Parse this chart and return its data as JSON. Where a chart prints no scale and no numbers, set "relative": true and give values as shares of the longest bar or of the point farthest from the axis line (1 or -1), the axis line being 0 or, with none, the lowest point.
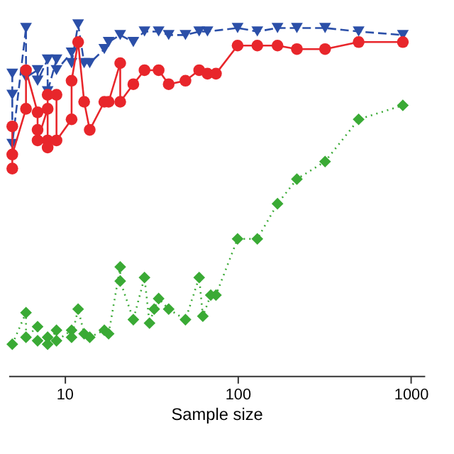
{
  "chart_data": {
    "type": "line",
    "xlabel": "Sample size",
    "relative": true,
    "log": "x",
    "grid": false,
    "xlim": [
      4.75,
      1200
    ],
    "xticks": [
      10,
      100,
      1000
    ],
    "series": [
      {
        "color": "#2b4fa8",
        "marker": "triangle",
        "line_style": "dashed",
        "x": [
          5,
          5,
          5,
          6,
          6,
          7,
          7,
          8,
          8,
          9,
          9,
          11,
          11,
          12,
          13,
          14,
          17,
          18,
          21,
          25,
          29,
          35,
          40,
          50,
          60,
          67,
          100,
          130,
          170,
          220,
          320,
          500,
          900
        ],
        "values": [
          0.86,
          0.8,
          0.66,
          0.99,
          0.85,
          0.87,
          0.84,
          0.9,
          0.81,
          0.9,
          0.87,
          0.92,
          0.89,
          1.0,
          0.89,
          0.89,
          0.93,
          0.95,
          0.97,
          0.95,
          0.98,
          0.98,
          0.97,
          0.97,
          0.98,
          0.98,
          0.99,
          0.98,
          0.99,
          0.99,
          0.99,
          0.98,
          0.97
        ]
      },
      {
        "color": "#e8262b",
        "marker": "circle",
        "line_style": "solid",
        "x": [
          5,
          5,
          5,
          6,
          6,
          7,
          7,
          7,
          8,
          8,
          8,
          8,
          9,
          9,
          11,
          11,
          12,
          13,
          14,
          17,
          18,
          21,
          21,
          25,
          29,
          35,
          40,
          50,
          60,
          67,
          75,
          100,
          130,
          170,
          220,
          320,
          500,
          900
        ],
        "values": [
          0.71,
          0.59,
          0.63,
          0.76,
          0.87,
          0.75,
          0.7,
          0.67,
          0.76,
          0.67,
          0.65,
          0.8,
          0.8,
          0.67,
          0.73,
          0.84,
          0.95,
          0.78,
          0.7,
          0.78,
          0.78,
          0.89,
          0.78,
          0.83,
          0.87,
          0.87,
          0.83,
          0.84,
          0.87,
          0.86,
          0.86,
          0.94,
          0.94,
          0.94,
          0.93,
          0.93,
          0.95,
          0.95
        ]
      },
      {
        "color": "#3aaa35",
        "marker": "diamond",
        "line_style": "dotted",
        "x": [
          5,
          6,
          6,
          7,
          7,
          8,
          8,
          9,
          9,
          11,
          11,
          12,
          13,
          14,
          17,
          18,
          21,
          21,
          25,
          29,
          31,
          33,
          35,
          40,
          50,
          60,
          63,
          70,
          75,
          100,
          130,
          170,
          220,
          320,
          500,
          900
        ],
        "values": [
          0.09,
          0.18,
          0.11,
          0.14,
          0.1,
          0.11,
          0.09,
          0.13,
          0.1,
          0.13,
          0.11,
          0.19,
          0.12,
          0.11,
          0.13,
          0.12,
          0.31,
          0.27,
          0.16,
          0.28,
          0.15,
          0.19,
          0.22,
          0.19,
          0.16,
          0.28,
          0.17,
          0.23,
          0.23,
          0.39,
          0.39,
          0.49,
          0.56,
          0.61,
          0.73,
          0.77
        ]
      }
    ]
  }
}
